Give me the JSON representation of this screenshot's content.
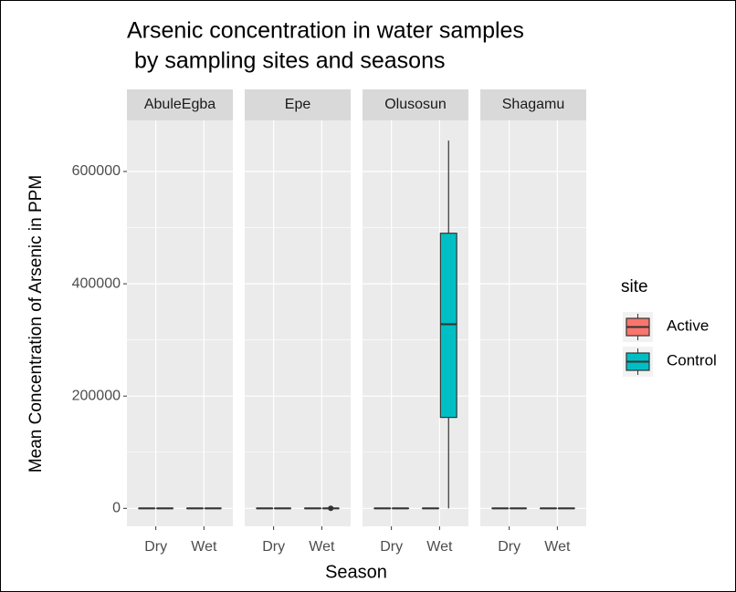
{
  "chart_data": {
    "type": "box",
    "title": [
      "Arsenic concentration in water samples",
      "by sampling sites and seasons"
    ],
    "xlabel": "Season",
    "ylabel": "Mean Concentration of Arsenic in PPM",
    "legend_title": "site",
    "facets": [
      "AbuleEgba",
      "Epe",
      "Olusosun",
      "Shagamu"
    ],
    "categories": [
      "Dry",
      "Wet"
    ],
    "ylim": [
      -32000,
      691000
    ],
    "yticks": [
      0,
      200000,
      400000,
      600000
    ],
    "grid": true,
    "series": [
      {
        "name": "Active",
        "color": "#F8766D",
        "values": [
          [
            [
              0,
              0,
              0,
              0,
              0
            ],
            [
              0,
              0,
              0,
              0,
              0
            ]
          ],
          [
            [
              0,
              0,
              0,
              0,
              0
            ],
            [
              0,
              0,
              0,
              0,
              0
            ]
          ],
          [
            [
              0,
              0,
              0,
              0,
              0
            ],
            [
              0,
              0,
              0,
              0,
              0
            ]
          ],
          [
            [
              0,
              0,
              0,
              0,
              0
            ],
            [
              0,
              0,
              0,
              0,
              0
            ]
          ]
        ],
        "outliers": [
          [
            [],
            []
          ],
          [
            [],
            []
          ],
          [
            [],
            []
          ],
          [
            [],
            []
          ]
        ]
      },
      {
        "name": "Control",
        "color": "#00BFC4",
        "values": [
          [
            [
              0,
              0,
              0,
              0,
              0
            ],
            [
              0,
              0,
              0,
              0,
              0
            ]
          ],
          [
            [
              0,
              0,
              0,
              0,
              0
            ],
            [
              0,
              0,
              0,
              0,
              0
            ]
          ],
          [
            [
              0,
              0,
              0,
              0,
              0
            ],
            [
              0,
              162000,
              328000,
              490000,
              655000
            ]
          ],
          [
            [
              0,
              0,
              0,
              0,
              0
            ],
            [
              0,
              0,
              0,
              0,
              0
            ]
          ]
        ],
        "outliers": [
          [
            [],
            []
          ],
          [
            [],
            [
              0
            ]
          ],
          [
            [],
            []
          ],
          [
            [],
            []
          ]
        ]
      }
    ]
  }
}
